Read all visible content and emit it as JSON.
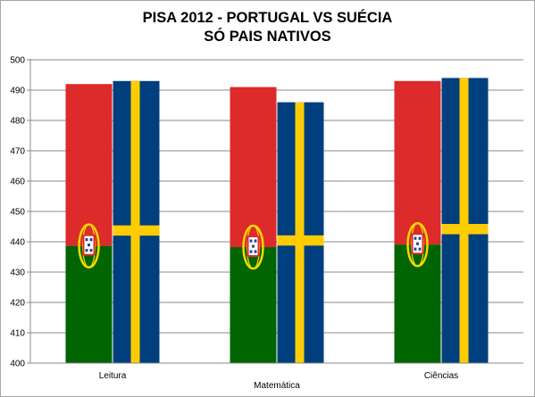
{
  "chart_data": {
    "type": "bar",
    "title": "PISA 2012 - PORTUGAL VS SUÉCIA",
    "subtitle": "SÓ PAIS NATIVOS",
    "categories": [
      "Leitura",
      "Matemática",
      "Ciências"
    ],
    "series": [
      {
        "values": [
          492,
          491,
          493
        ],
        "fill_icon": "portugal-flag",
        "colors": {
          "top": "#dd2a2a",
          "bottom": "#006400",
          "emblem": "#f5d800"
        }
      },
      {
        "values": [
          493,
          486,
          494
        ],
        "fill_icon": "sweden-flag",
        "colors": {
          "field": "#003f7d",
          "cross": "#ffcc00"
        }
      }
    ],
    "ylim": [
      400,
      500
    ],
    "yticks": [
      400,
      410,
      420,
      430,
      440,
      450,
      460,
      470,
      480,
      490,
      500
    ],
    "grid": true,
    "legend": "none"
  }
}
